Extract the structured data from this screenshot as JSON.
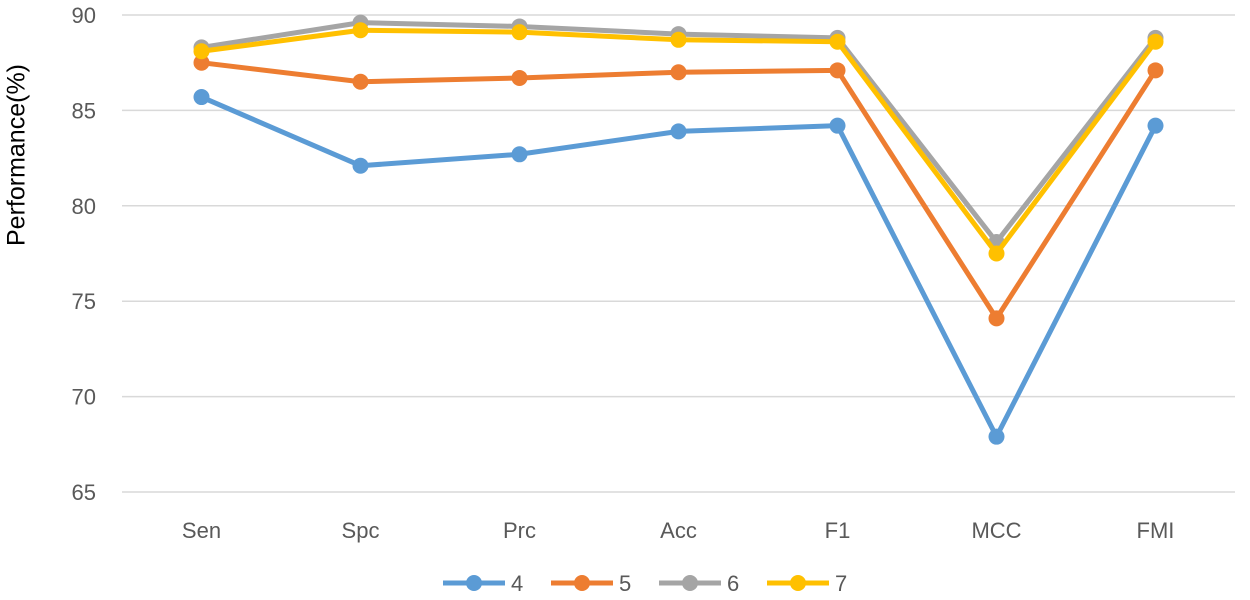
{
  "chart_data": {
    "type": "line",
    "categories": [
      "Sen",
      "Spc",
      "Prc",
      "Acc",
      "F1",
      "MCC",
      "FMI"
    ],
    "ylabel": "Performance(%)",
    "xlabel": "",
    "ylim": [
      65,
      90
    ],
    "yticks": [
      65,
      70,
      75,
      80,
      85,
      90
    ],
    "grid": true,
    "legend_position": "bottom",
    "series": [
      {
        "name": "4",
        "color": "#5B9BD5",
        "values": [
          85.7,
          82.1,
          82.7,
          83.9,
          84.2,
          67.9,
          84.2
        ]
      },
      {
        "name": "5",
        "color": "#ED7D31",
        "values": [
          87.5,
          86.5,
          86.7,
          87.0,
          87.1,
          74.1,
          87.1
        ]
      },
      {
        "name": "6",
        "color": "#A5A5A5",
        "values": [
          88.3,
          89.6,
          89.4,
          89.0,
          88.8,
          78.1,
          88.8
        ]
      },
      {
        "name": "7",
        "color": "#FFC000",
        "values": [
          88.1,
          89.2,
          89.1,
          88.7,
          88.6,
          77.5,
          88.6
        ]
      }
    ]
  }
}
